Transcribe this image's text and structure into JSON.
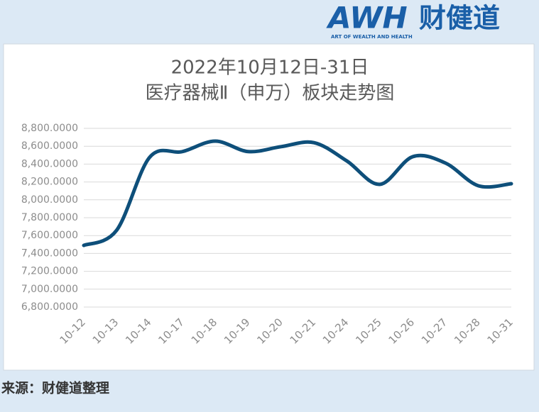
{
  "logo": {
    "brand": "AWH",
    "name": "财健道",
    "tagline": "ART OF WEALTH AND HEALTH"
  },
  "source": "来源：财健道整理",
  "chart_data": {
    "type": "line",
    "title": [
      "2022年10月12日-31日",
      "医疗器械Ⅱ（申万）板块走势图"
    ],
    "categories": [
      "10-12",
      "10-13",
      "10-14",
      "10-17",
      "10-18",
      "10-19",
      "10-20",
      "10-21",
      "10-24",
      "10-25",
      "10-26",
      "10-27",
      "10-28",
      "10-31"
    ],
    "series": [
      {
        "name": "医疗器械Ⅱ（申万）",
        "color": "#0e4f7a",
        "values": [
          7490,
          7660,
          8475,
          8540,
          8657,
          8540,
          8595,
          8640,
          8435,
          8173,
          8483,
          8411,
          8157,
          8180
        ]
      }
    ],
    "ylim": [
      6800,
      8800
    ],
    "yticks": [
      {
        "value": 6800,
        "label": "6,800.0000"
      },
      {
        "value": 7000,
        "label": "7,000.0000"
      },
      {
        "value": 7200,
        "label": "7,200.0000"
      },
      {
        "value": 7400,
        "label": "7,400.0000"
      },
      {
        "value": 7600,
        "label": "7,600.0000"
      },
      {
        "value": 7800,
        "label": "7,800.0000"
      },
      {
        "value": 8000,
        "label": "8,000.0000"
      },
      {
        "value": 8200,
        "label": "8,200.0000"
      },
      {
        "value": 8400,
        "label": "8,400.0000"
      },
      {
        "value": 8600,
        "label": "8,600.0000"
      },
      {
        "value": 8800,
        "label": "8,800.0000"
      }
    ],
    "grid": true
  }
}
